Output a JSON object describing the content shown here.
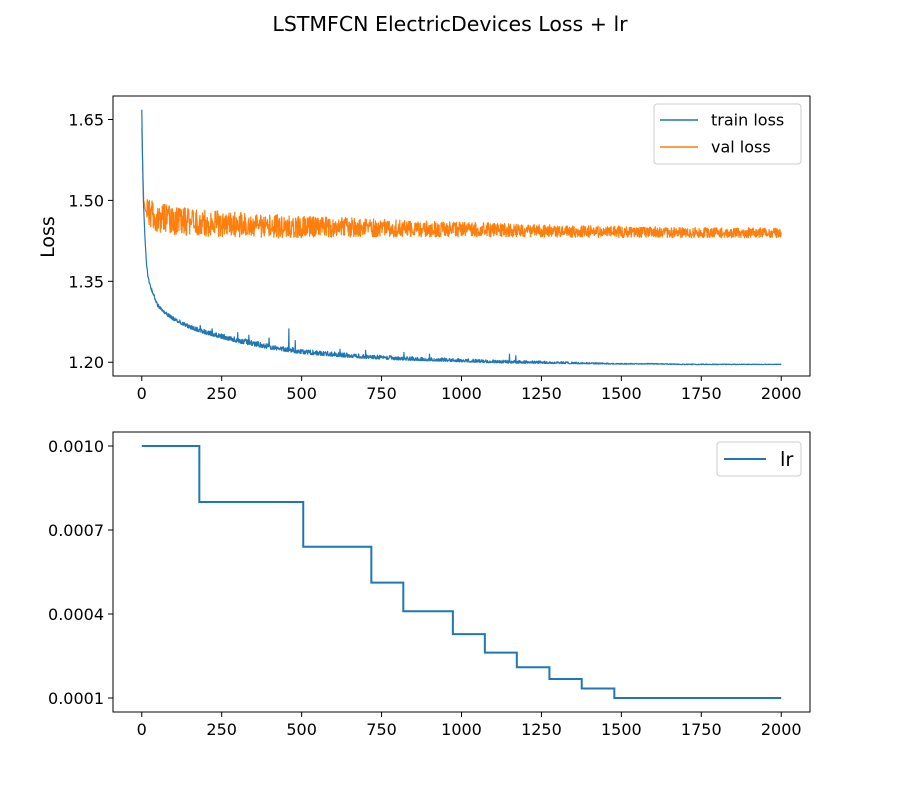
{
  "chart_data": [
    {
      "type": "line",
      "title": "LSTMFCN ElectricDevices Loss + lr",
      "ylabel": "Loss",
      "xlabel": "",
      "xlim": [
        -90,
        2090
      ],
      "ylim": [
        1.1745,
        1.6935
      ],
      "xticks": [
        0,
        250,
        500,
        750,
        1000,
        1250,
        1500,
        1750,
        2000
      ],
      "xtick_labels": [
        "0",
        "250",
        "500",
        "750",
        "1000",
        "1250",
        "1500",
        "1750",
        "2000"
      ],
      "yticks": [
        1.2,
        1.35,
        1.5,
        1.65
      ],
      "ytick_labels": [
        "1.20",
        "1.35",
        "1.50",
        "1.65"
      ],
      "legend_position": "top-right",
      "grid": false,
      "x_range": [
        0,
        2000
      ],
      "series": [
        {
          "name": "train loss",
          "color": "#1f77b4",
          "anchors": [
            [
              0,
              1.668
            ],
            [
              2,
              1.59
            ],
            [
              5,
              1.5
            ],
            [
              10,
              1.43
            ],
            [
              15,
              1.38
            ],
            [
              20,
              1.355
            ],
            [
              30,
              1.335
            ],
            [
              50,
              1.305
            ],
            [
              75,
              1.29
            ],
            [
              100,
              1.28
            ],
            [
              150,
              1.265
            ],
            [
              200,
              1.255
            ],
            [
              300,
              1.24
            ],
            [
              400,
              1.228
            ],
            [
              500,
              1.219
            ],
            [
              600,
              1.214
            ],
            [
              700,
              1.21
            ],
            [
              800,
              1.207
            ],
            [
              900,
              1.205
            ],
            [
              1000,
              1.203
            ],
            [
              1100,
              1.201
            ],
            [
              1200,
              1.2
            ],
            [
              1300,
              1.199
            ],
            [
              1400,
              1.198
            ],
            [
              1500,
              1.197
            ],
            [
              1600,
              1.197
            ],
            [
              1700,
              1.196
            ],
            [
              1800,
              1.196
            ],
            [
              1900,
              1.196
            ],
            [
              2000,
              1.196
            ]
          ],
          "spikes": [
            [
              183,
              1.268
            ],
            [
              220,
              1.262
            ],
            [
              300,
              1.255
            ],
            [
              335,
              1.25
            ],
            [
              398,
              1.245
            ],
            [
              460,
              1.262
            ],
            [
              480,
              1.24
            ],
            [
              620,
              1.224
            ],
            [
              700,
              1.222
            ],
            [
              820,
              1.218
            ],
            [
              900,
              1.215
            ],
            [
              1150,
              1.215
            ],
            [
              1170,
              1.212
            ]
          ],
          "noise_amplitude": [
            [
              0,
              0.003
            ],
            [
              300,
              0.006
            ],
            [
              1200,
              0.003
            ],
            [
              1500,
              0.001
            ],
            [
              2000,
              0.0005
            ]
          ]
        },
        {
          "name": "val loss",
          "color": "#ff7f0e",
          "anchors": [
            [
              0,
              1.635
            ],
            [
              3,
              1.56
            ],
            [
              6,
              1.5
            ],
            [
              12,
              1.48
            ],
            [
              40,
              1.47
            ],
            [
              100,
              1.462
            ],
            [
              200,
              1.457
            ],
            [
              400,
              1.452
            ],
            [
              700,
              1.449
            ],
            [
              1000,
              1.446
            ],
            [
              1300,
              1.443
            ],
            [
              1600,
              1.441
            ],
            [
              1800,
              1.44
            ],
            [
              2000,
              1.44
            ]
          ],
          "noise_amplitude": [
            [
              0,
              0.028
            ],
            [
              400,
              0.022
            ],
            [
              800,
              0.016
            ],
            [
              1200,
              0.012
            ],
            [
              1600,
              0.01
            ],
            [
              2000,
              0.009
            ]
          ]
        }
      ]
    },
    {
      "type": "line",
      "title": "",
      "ylabel": "",
      "xlabel": "",
      "xlim": [
        -90,
        2090
      ],
      "ylim": [
        5e-05,
        0.00105
      ],
      "xticks": [
        0,
        250,
        500,
        750,
        1000,
        1250,
        1500,
        1750,
        2000
      ],
      "xtick_labels": [
        "0",
        "250",
        "500",
        "750",
        "1000",
        "1250",
        "1500",
        "1750",
        "2000"
      ],
      "yticks": [
        0.0001,
        0.0004,
        0.0007,
        0.001
      ],
      "ytick_labels": [
        "0.0001",
        "0.0004",
        "0.0007",
        "0.0010"
      ],
      "legend_position": "top-right",
      "grid": false,
      "series": [
        {
          "name": "lr",
          "color": "#1f77b4",
          "step_points": [
            [
              0,
              0.001
            ],
            [
              180,
              0.0008
            ],
            [
              505,
              0.00064
            ],
            [
              718,
              0.000512
            ],
            [
              818,
              0.00041
            ],
            [
              973,
              0.000328
            ],
            [
              1073,
              0.000262
            ],
            [
              1173,
              0.00021
            ],
            [
              1275,
              0.000168
            ],
            [
              1376,
              0.000134
            ],
            [
              1478,
              0.0001
            ],
            [
              2000,
              0.0001
            ]
          ]
        }
      ]
    }
  ]
}
